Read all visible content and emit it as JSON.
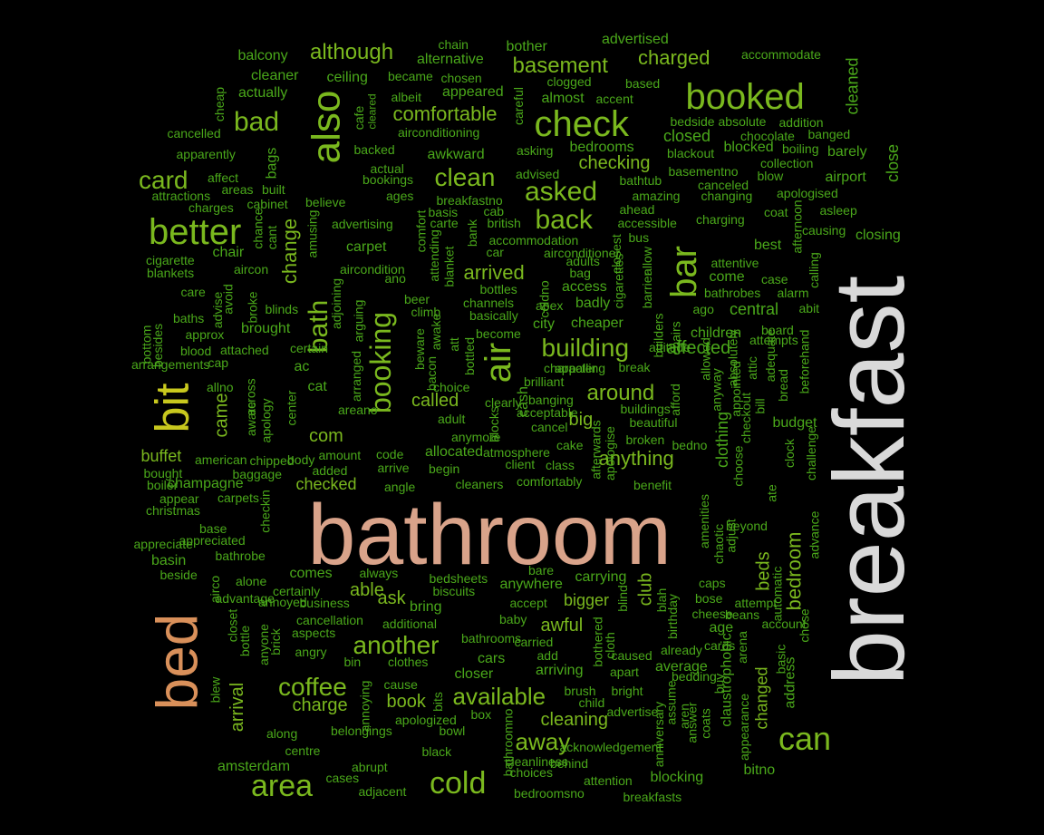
{
  "colors": {
    "background": "#000000",
    "big1": "#d9d9d9",
    "big2": "#d9a38a",
    "big3": "#d9905a",
    "yellow": "#c8c81e",
    "lime": "#7ab81e",
    "green": "#4aa81a",
    "dark": "#2e8a18"
  },
  "words": [
    "breakfast",
    "bathroom",
    "bed",
    "bit",
    "booked",
    "check",
    "also",
    "air",
    "bar",
    "booking",
    "better",
    "bath",
    "card",
    "bad",
    "asked",
    "back",
    "clean",
    "building",
    "area",
    "cold",
    "can",
    "coffee",
    "another",
    "available",
    "away",
    "comfortable",
    "basement",
    "charged",
    "although",
    "change",
    "around",
    "anything",
    "arrived",
    "checking",
    "called",
    "big",
    "ask",
    "able",
    "cleaning",
    "awful",
    "bigger",
    "club",
    "bedroom",
    "beds",
    "changed",
    "arrival",
    "charge",
    "book",
    "com",
    "buffet",
    "checked",
    "came",
    "advertised",
    "chain",
    "bother",
    "balcony",
    "alternative",
    "cleaner",
    "ceiling",
    "became",
    "chosen",
    "actually",
    "appeared",
    "albeit",
    "almost",
    "accent",
    "clogged",
    "based",
    "accommodate",
    "cleaned",
    "cheap",
    "careful",
    "cafe",
    "cleared",
    "bedside",
    "absolute",
    "addition",
    "cancelled",
    "airconditioning",
    "bedrooms",
    "closed",
    "chocolate",
    "banged",
    "apparently",
    "backed",
    "awkward",
    "asking",
    "blocked",
    "boiling",
    "barely",
    "bags",
    "blackout",
    "collection",
    "affect",
    "actual",
    "advised",
    "basementno",
    "blow",
    "airport",
    "close",
    "attractions",
    "areas",
    "built",
    "bookings",
    "bathtub",
    "canceled",
    "apologised",
    "charges",
    "cabinet",
    "believe",
    "ages",
    "breakfastno",
    "amazing",
    "changing",
    "cab",
    "ahead",
    "coat",
    "asleep",
    "basis",
    "carte",
    "british",
    "accessible",
    "charging",
    "afternoon",
    "causing",
    "chance",
    "advertising",
    "amusing",
    "cant",
    "comfort",
    "bank",
    "bus",
    "closing",
    "accommodation",
    "airconditioner",
    "closest",
    "best",
    "cigarette",
    "chair",
    "carpet",
    "attending",
    "car",
    "allow",
    "attentive",
    "blankets",
    "aircon",
    "aircondition",
    "blanket",
    "bag",
    "adults",
    "calling",
    "come",
    "care",
    "advise",
    "avoid",
    "broke",
    "adjoining",
    "ano",
    "bottles",
    "coldno",
    "cigarettes",
    "access",
    "barrier",
    "case",
    "bathrobes",
    "alarm",
    "baths",
    "blinds",
    "arguing",
    "beer",
    "channels",
    "apex",
    "badly",
    "ago",
    "central",
    "abit",
    "climb",
    "basically",
    "cheaper",
    "bottom",
    "besides",
    "brought",
    "become",
    "awake",
    "bottled",
    "city",
    "builders",
    "chairs",
    "children",
    "board",
    "approx",
    "blood",
    "attached",
    "certain",
    "beware",
    "att",
    "character",
    "break",
    "affected",
    "absolutely",
    "attempts",
    "adequate",
    "arrangements",
    "cap",
    "ac",
    "arranged",
    "bacon",
    "appalling",
    "attitude",
    "allowed",
    "attic",
    "beforehand",
    "brilliant",
    "banging",
    "allno",
    "across",
    "cat",
    "choice",
    "cash",
    "acceptable",
    "afford",
    "anyway",
    "appointed",
    "bread",
    "aware",
    "apology",
    "center",
    "adult",
    "clearly",
    "buildings",
    "budget",
    "areano",
    "beautiful",
    "checkout",
    "bill",
    "blocks",
    "cancel",
    "anymore",
    "broken",
    "cake",
    "clothing",
    "bedno",
    "afterwards",
    "american",
    "body",
    "chipped",
    "amount",
    "code",
    "allocated",
    "atmosphere",
    "apologise",
    "choose",
    "clock",
    "challenge",
    "added",
    "arrive",
    "begin",
    "client",
    "class",
    "bought",
    "boiler",
    "baggage",
    "champagne",
    "angle",
    "cleaners",
    "comfortably",
    "benefit",
    "ate",
    "appear",
    "carpets",
    "christmas",
    "checkin",
    "amenities",
    "chaotic",
    "base",
    "adjust",
    "beyond",
    "appreciate",
    "appreciated",
    "advance",
    "bathrobe",
    "basin",
    "beside",
    "comes",
    "always",
    "bare",
    "carrying",
    "automatic",
    "alone",
    "airco",
    "advantage",
    "certainly",
    "bedsheets",
    "anywhere",
    "caps",
    "biscuits",
    "blind",
    "bose",
    "attempt",
    "blah",
    "business",
    "annoyed",
    "bring",
    "accept",
    "cheese",
    "beans",
    "closet",
    "bottle",
    "cancellation",
    "aspects",
    "additional",
    "baby",
    "birthday",
    "account",
    "anyone",
    "brick",
    "bathrooms",
    "bothered",
    "age",
    "chose",
    "angry",
    "bin",
    "carried",
    "cloth",
    "cards",
    "arena",
    "already",
    "clothes",
    "cars",
    "add",
    "caused",
    "average",
    "blew",
    "basic",
    "address",
    "annoying",
    "closer",
    "arriving",
    "apart",
    "buy",
    "cause",
    "brush",
    "bright",
    "claustrophobic",
    "bedding",
    "assume",
    "aren",
    "bits",
    "child",
    "apologized",
    "box",
    "advertise",
    "answer",
    "coats",
    "appearance",
    "along",
    "belongings",
    "bowl",
    "bathroomno",
    "anniversary",
    "centre",
    "acknowledgement",
    "black",
    "amsterdam",
    "abrupt",
    "behind",
    "bitno",
    "cleanliness",
    "cases",
    "choices",
    "attention",
    "blocking",
    "adjacent",
    "bedroomsno",
    "breakfasts"
  ]
}
